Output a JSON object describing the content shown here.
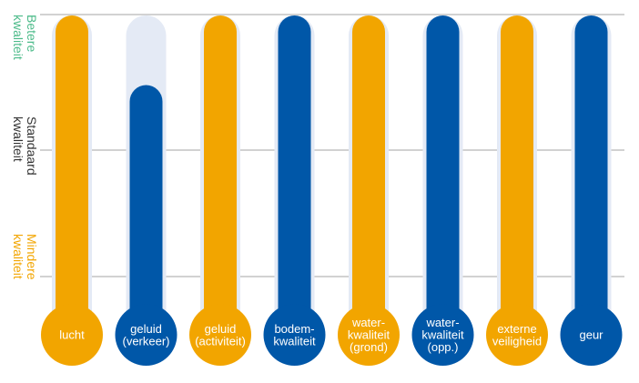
{
  "chart_data": {
    "type": "bar",
    "categories": [
      "lucht",
      "geluid (verkeer)",
      "geluid (activiteit)",
      "bodem-kwaliteit",
      "water-kwaliteit (grond)",
      "water-kwaliteit (opp.)",
      "externe veiligheid",
      "geur"
    ],
    "category_lines": [
      [
        "lucht"
      ],
      [
        "geluid",
        "(verkeer)"
      ],
      [
        "geluid",
        "(activiteit)"
      ],
      [
        "bodem-",
        "kwaliteit"
      ],
      [
        "water-",
        "kwaliteit",
        "(grond)"
      ],
      [
        "water-",
        "kwaliteit",
        "(opp.)"
      ],
      [
        "externe",
        "veiligheid"
      ],
      [
        "geur"
      ]
    ],
    "values": [
      1.0,
      0.78,
      1.0,
      1.0,
      1.0,
      1.0,
      1.0,
      1.0
    ],
    "colors": [
      "#F2A500",
      "#0057A8",
      "#F2A500",
      "#0057A8",
      "#F2A500",
      "#0057A8",
      "#F2A500",
      "#0057A8"
    ],
    "track_color": "#E4EAF5",
    "gridline_color": "#888888",
    "y_levels": [
      {
        "label": "Betere kwaliteit",
        "lines": [
          "Betere",
          "kwaliteit"
        ],
        "color": "#4DBB8A"
      },
      {
        "label": "Standaard kwaliteit",
        "lines": [
          "Standaard",
          "kwaliteit"
        ],
        "color": "#333333"
      },
      {
        "label": "Mindere kwaliteit",
        "lines": [
          "Mindere",
          "kwaliteit"
        ],
        "color": "#F2A500"
      }
    ],
    "ylim": [
      0,
      1
    ],
    "grid": true
  }
}
